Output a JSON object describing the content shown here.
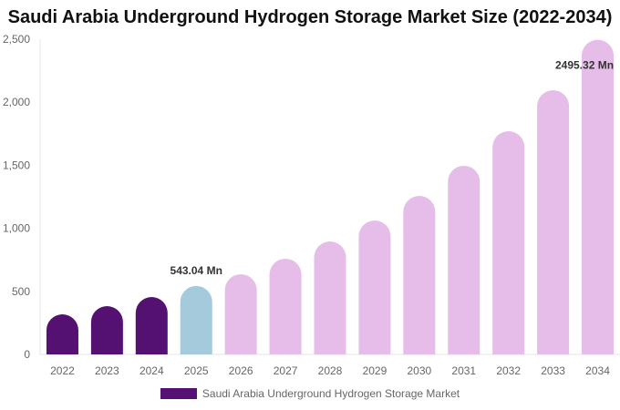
{
  "chart_data": {
    "type": "bar",
    "title": "Saudi Arabia Underground Hydrogen Storage Market Size (2022-2034)",
    "categories": [
      "2022",
      "2023",
      "2024",
      "2025",
      "2026",
      "2027",
      "2028",
      "2029",
      "2030",
      "2031",
      "2032",
      "2033",
      "2034"
    ],
    "series": [
      {
        "name": "Saudi Arabia Underground Hydrogen Storage Market",
        "values": [
          318,
          383,
          455,
          543.04,
          636,
          759,
          896,
          1062,
          1257,
          1496,
          1770,
          2095,
          2495.32
        ]
      }
    ],
    "data_labels": [
      {
        "category": "2025",
        "text": "543.04 Mn"
      },
      {
        "category": "2034",
        "text": "2495.32 Mn"
      }
    ],
    "ylim": [
      0,
      2500
    ],
    "yticks": [
      "0",
      "500",
      "1,000",
      "1,500",
      "2,000",
      "2,500"
    ],
    "ytick_values": [
      0,
      500,
      1000,
      1500,
      2000,
      2500
    ],
    "grid": false,
    "legend": "bottom",
    "colors": {
      "historical": "#541171",
      "base_year": "#a5cadb",
      "forecast": "#e6bde8"
    },
    "color_groups": [
      "historical",
      "historical",
      "historical",
      "base_year",
      "forecast",
      "forecast",
      "forecast",
      "forecast",
      "forecast",
      "forecast",
      "forecast",
      "forecast",
      "forecast"
    ]
  }
}
